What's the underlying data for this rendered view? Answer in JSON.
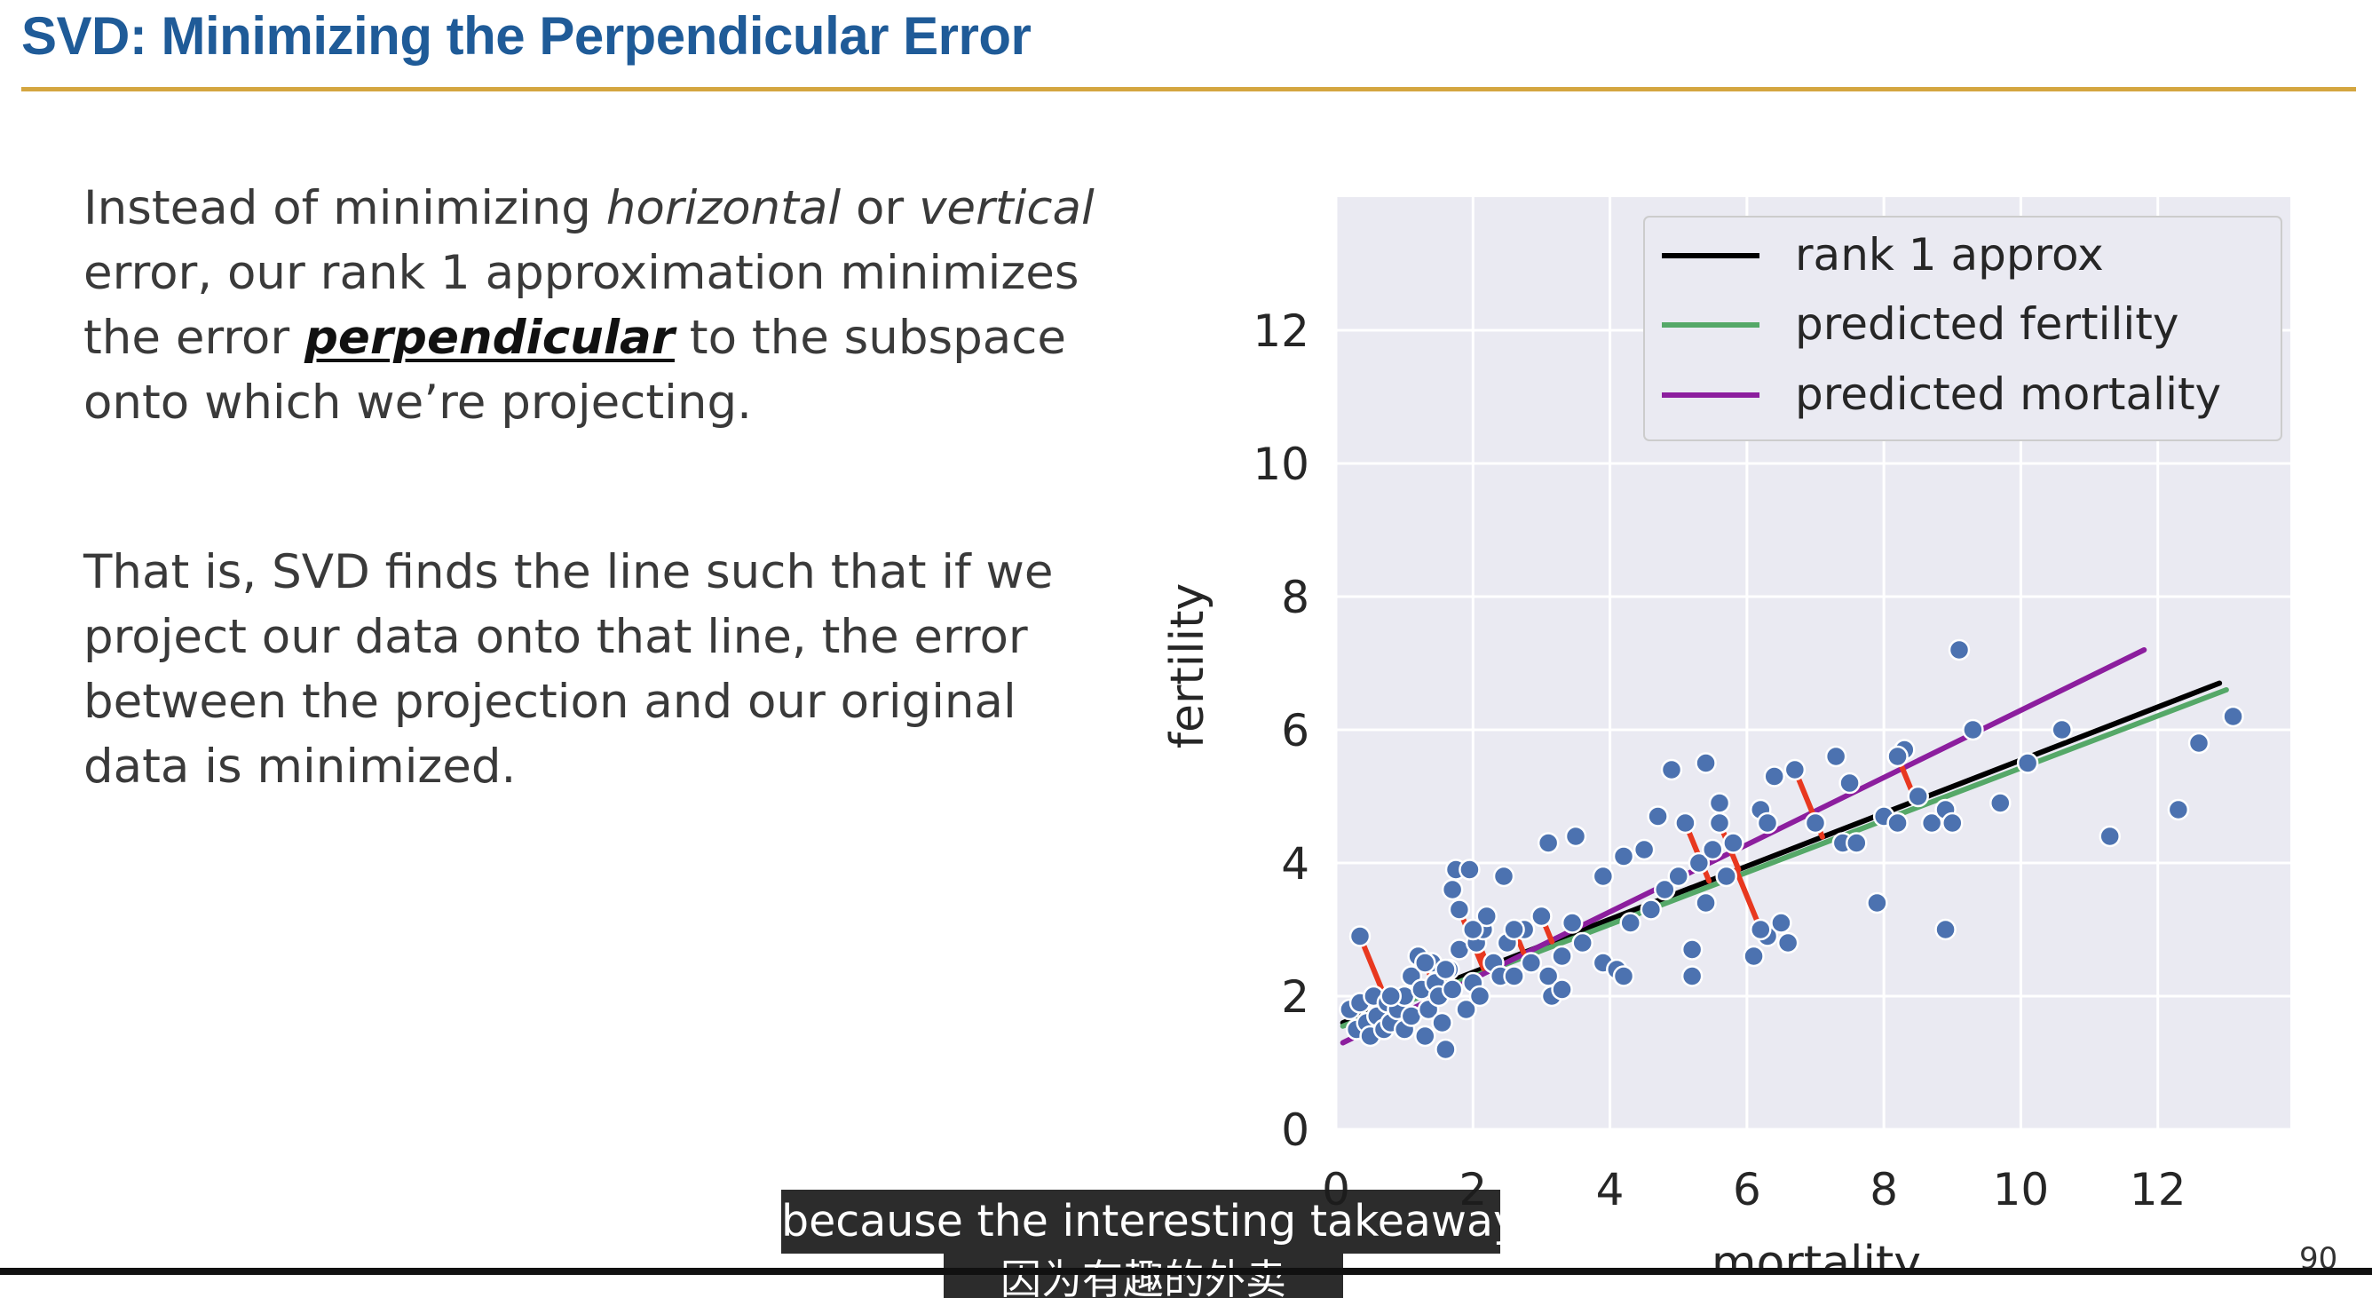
{
  "slide": {
    "title": "SVD: Minimizing the Perpendicular Error",
    "page_number": "90"
  },
  "paragraph1": {
    "t1": "Instead of minimizing ",
    "t2": "horizontal",
    "t3": " or ",
    "t4": "vertical",
    "t5": " error, our rank 1 approximation minimizes the error ",
    "t6": "perpendicular",
    "t7": " to the subspace onto which we’re projecting."
  },
  "paragraph2": {
    "text": "That is, SVD finds the line such that if we project our data onto that line, the error between the projection and our original data is minimized."
  },
  "subtitles": {
    "line1": "because the interesting takeaway,",
    "line2": "因为有趣的外卖"
  },
  "colors": {
    "title": "#1f5b98",
    "rule": "#d4a640",
    "plot_bg": "#eaeaf2",
    "points": "#4c72b0",
    "error_segments": "#e8381f",
    "rank1": "#000000",
    "pred_fertility": "#55a868",
    "pred_mortality": "#8c1e9e"
  },
  "chart_data": {
    "type": "scatter",
    "xlabel": "mortality",
    "ylabel": "fertility",
    "xlim": [
      0,
      14
    ],
    "ylim": [
      0,
      14
    ],
    "xticks": [
      0,
      2,
      4,
      6,
      8,
      10,
      12
    ],
    "yticks": [
      0,
      2,
      4,
      6,
      8,
      10,
      12
    ],
    "grid": true,
    "legend_position": "top-right",
    "points": [
      [
        0.2,
        1.8
      ],
      [
        0.3,
        1.5
      ],
      [
        0.35,
        1.9
      ],
      [
        0.45,
        1.6
      ],
      [
        0.5,
        1.4
      ],
      [
        0.55,
        2.0
      ],
      [
        0.6,
        1.7
      ],
      [
        0.7,
        1.5
      ],
      [
        0.75,
        1.9
      ],
      [
        0.8,
        1.6
      ],
      [
        0.9,
        1.8
      ],
      [
        1.0,
        2.0
      ],
      [
        1.0,
        1.5
      ],
      [
        1.1,
        2.3
      ],
      [
        1.1,
        1.7
      ],
      [
        1.2,
        2.6
      ],
      [
        1.25,
        2.1
      ],
      [
        1.3,
        1.4
      ],
      [
        1.35,
        1.8
      ],
      [
        1.4,
        2.5
      ],
      [
        1.45,
        2.2
      ],
      [
        1.5,
        2.0
      ],
      [
        1.55,
        1.6
      ],
      [
        1.6,
        1.2
      ],
      [
        1.65,
        2.4
      ],
      [
        1.7,
        3.6
      ],
      [
        1.7,
        2.1
      ],
      [
        1.75,
        3.9
      ],
      [
        1.8,
        2.7
      ],
      [
        1.9,
        1.8
      ],
      [
        1.95,
        3.9
      ],
      [
        2.0,
        2.2
      ],
      [
        2.05,
        2.8
      ],
      [
        2.1,
        2.0
      ],
      [
        2.15,
        3.0
      ],
      [
        2.2,
        3.2
      ],
      [
        2.3,
        2.5
      ],
      [
        2.4,
        2.3
      ],
      [
        2.45,
        3.8
      ],
      [
        2.5,
        2.8
      ],
      [
        2.6,
        2.3
      ],
      [
        2.75,
        3.0
      ],
      [
        2.85,
        2.5
      ],
      [
        3.0,
        3.2
      ],
      [
        3.1,
        4.3
      ],
      [
        3.1,
        2.3
      ],
      [
        3.15,
        2.0
      ],
      [
        3.3,
        2.1
      ],
      [
        3.3,
        2.6
      ],
      [
        3.45,
        3.1
      ],
      [
        3.5,
        4.4
      ],
      [
        3.6,
        2.8
      ],
      [
        3.9,
        2.5
      ],
      [
        3.9,
        3.8
      ],
      [
        4.1,
        2.4
      ],
      [
        4.2,
        2.3
      ],
      [
        4.2,
        4.1
      ],
      [
        4.3,
        3.1
      ],
      [
        4.5,
        4.2
      ],
      [
        4.6,
        3.3
      ],
      [
        4.7,
        4.7
      ],
      [
        4.8,
        3.6
      ],
      [
        4.9,
        5.4
      ],
      [
        5.0,
        3.8
      ],
      [
        5.2,
        2.3
      ],
      [
        5.2,
        2.7
      ],
      [
        5.3,
        4.0
      ],
      [
        5.4,
        3.4
      ],
      [
        5.4,
        5.5
      ],
      [
        5.5,
        4.2
      ],
      [
        5.6,
        4.9
      ],
      [
        5.7,
        3.8
      ],
      [
        5.8,
        4.3
      ],
      [
        6.1,
        2.6
      ],
      [
        6.2,
        4.8
      ],
      [
        6.3,
        4.6
      ],
      [
        6.3,
        2.9
      ],
      [
        6.4,
        5.3
      ],
      [
        6.5,
        3.1
      ],
      [
        6.6,
        2.8
      ],
      [
        7.0,
        4.6
      ],
      [
        7.3,
        5.6
      ],
      [
        7.4,
        4.3
      ],
      [
        7.5,
        5.2
      ],
      [
        7.6,
        4.3
      ],
      [
        7.9,
        3.4
      ],
      [
        8.0,
        4.7
      ],
      [
        8.2,
        4.6
      ],
      [
        8.3,
        5.7
      ],
      [
        8.5,
        5.0
      ],
      [
        8.7,
        4.6
      ],
      [
        8.9,
        4.8
      ],
      [
        8.9,
        3.0
      ],
      [
        9.0,
        4.6
      ],
      [
        9.1,
        7.2
      ],
      [
        9.3,
        6.0
      ],
      [
        9.7,
        4.9
      ],
      [
        10.1,
        5.5
      ],
      [
        10.6,
        6.0
      ],
      [
        11.3,
        4.4
      ],
      [
        12.3,
        4.8
      ],
      [
        12.6,
        5.8
      ],
      [
        13.1,
        6.2
      ]
    ],
    "error_points": [
      [
        0.35,
        2.9
      ],
      [
        0.8,
        2.0
      ],
      [
        1.3,
        2.5
      ],
      [
        1.6,
        2.4
      ],
      [
        1.8,
        3.3
      ],
      [
        2.0,
        3.0
      ],
      [
        2.6,
        3.0
      ],
      [
        3.0,
        3.2
      ],
      [
        5.1,
        4.6
      ],
      [
        5.6,
        4.6
      ],
      [
        6.2,
        3.0
      ],
      [
        6.7,
        5.4
      ],
      [
        8.2,
        5.6
      ]
    ],
    "lines": [
      {
        "name": "rank 1 approx",
        "x": [
          0.1,
          12.9
        ],
        "y": [
          1.6,
          6.7
        ]
      },
      {
        "name": "predicted fertility",
        "x": [
          0.1,
          13.0
        ],
        "y": [
          1.55,
          6.6
        ]
      },
      {
        "name": "predicted mortality",
        "x": [
          0.1,
          11.8
        ],
        "y": [
          1.3,
          7.2
        ]
      }
    ]
  }
}
